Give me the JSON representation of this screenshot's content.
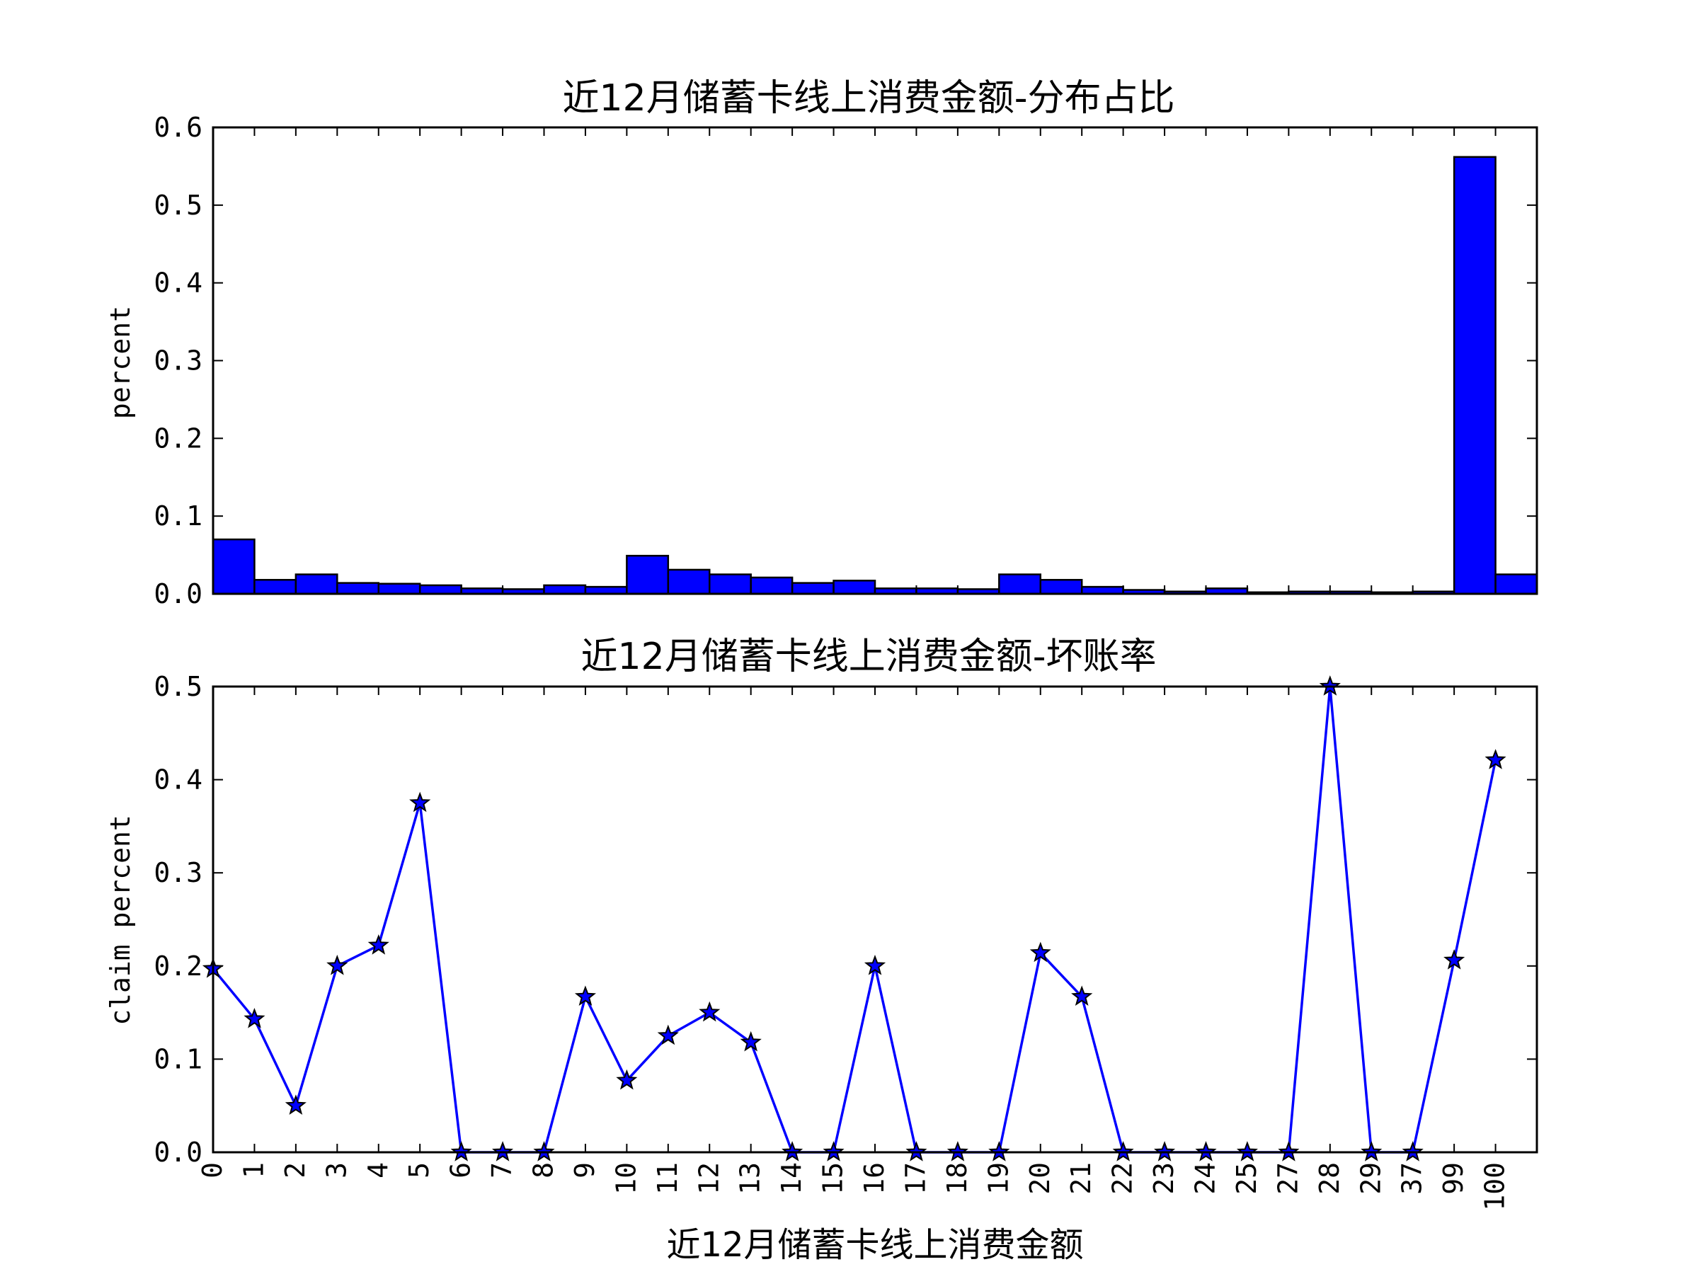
{
  "chart_data": [
    {
      "type": "bar",
      "title": "近12月储蓄卡线上消费金额-分布占比",
      "xlabel": "",
      "ylabel": "percent",
      "ylim": [
        0,
        0.6
      ],
      "yticks": [
        "0.0",
        "0.1",
        "0.2",
        "0.3",
        "0.4",
        "0.5",
        "0.6"
      ],
      "categories": [
        "0",
        "1",
        "2",
        "3",
        "4",
        "5",
        "6",
        "7",
        "8",
        "9",
        "10",
        "11",
        "12",
        "13",
        "14",
        "15",
        "16",
        "17",
        "18",
        "19",
        "20",
        "21",
        "22",
        "23",
        "24",
        "25",
        "27",
        "28",
        "29",
        "37",
        "99",
        "100"
      ],
      "values": [
        0.07,
        0.018,
        0.025,
        0.014,
        0.013,
        0.011,
        0.007,
        0.006,
        0.011,
        0.009,
        0.049,
        0.031,
        0.025,
        0.021,
        0.014,
        0.017,
        0.007,
        0.007,
        0.006,
        0.025,
        0.018,
        0.009,
        0.005,
        0.003,
        0.007,
        0.002,
        0.003,
        0.003,
        0.002,
        0.003,
        0.562,
        0.025
      ],
      "bar_color": "#0000ff",
      "edge_color": "#000000"
    },
    {
      "type": "line",
      "title": "近12月储蓄卡线上消费金额-坏账率",
      "xlabel": "近12月储蓄卡线上消费金额",
      "ylabel": "claim percent",
      "ylim": [
        0,
        0.5
      ],
      "yticks": [
        "0.0",
        "0.1",
        "0.2",
        "0.3",
        "0.4",
        "0.5"
      ],
      "categories": [
        "0",
        "1",
        "2",
        "3",
        "4",
        "5",
        "6",
        "7",
        "8",
        "9",
        "10",
        "11",
        "12",
        "13",
        "14",
        "15",
        "16",
        "17",
        "18",
        "19",
        "20",
        "21",
        "22",
        "23",
        "24",
        "25",
        "27",
        "28",
        "29",
        "37",
        "99",
        "100"
      ],
      "values": [
        0.197,
        0.143,
        0.05,
        0.2,
        0.222,
        0.375,
        0,
        0,
        0,
        0.167,
        0.077,
        0.125,
        0.15,
        0.118,
        0,
        0,
        0.2,
        0,
        0,
        0,
        0.214,
        0.167,
        0,
        0,
        0,
        0,
        0,
        0.5,
        0,
        0,
        0.206,
        0.421
      ],
      "line_color": "#0000ff",
      "marker": "star"
    }
  ]
}
